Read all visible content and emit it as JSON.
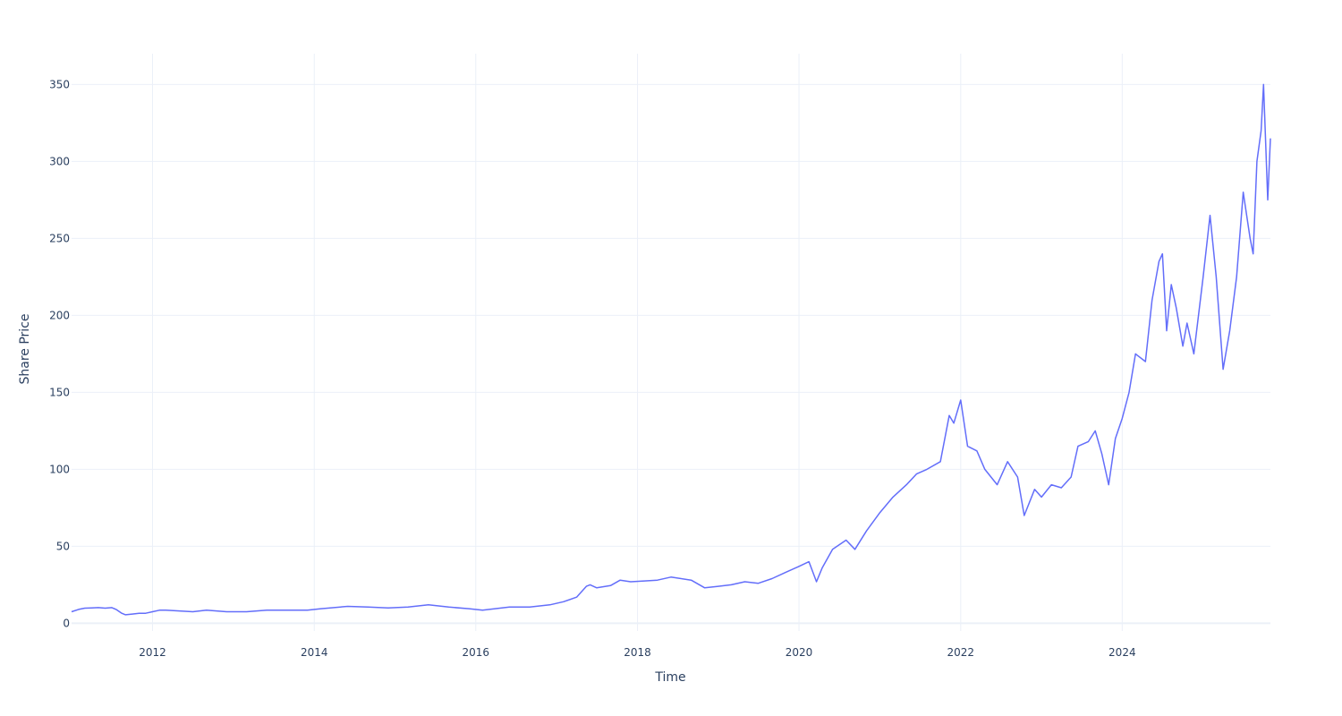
{
  "chart_data": {
    "type": "line",
    "xlabel": "Time",
    "ylabel": "Share Price",
    "xlim": [
      "2010-12-31",
      "2025-11-01"
    ],
    "ylim": [
      -5,
      370
    ],
    "x_ticks": [
      "2012",
      "2014",
      "2016",
      "2018",
      "2020",
      "2022",
      "2024"
    ],
    "y_ticks": [
      0,
      50,
      100,
      150,
      200,
      250,
      300,
      350
    ],
    "grid": true,
    "legend": "none",
    "colors": {
      "line": "#636efa",
      "grid": "#ebf0f8",
      "text": "#2a3f5f"
    },
    "series": [
      {
        "points": [
          [
            "2010-12-31",
            7.5
          ],
          [
            "2011-02-01",
            9.0
          ],
          [
            "2011-03-01",
            9.8
          ],
          [
            "2011-04-01",
            10.0
          ],
          [
            "2011-05-01",
            10.2
          ],
          [
            "2011-06-01",
            9.8
          ],
          [
            "2011-07-01",
            10.2
          ],
          [
            "2011-07-20",
            9.0
          ],
          [
            "2011-08-15",
            6.5
          ],
          [
            "2011-09-01",
            5.5
          ],
          [
            "2011-10-01",
            6.0
          ],
          [
            "2011-11-01",
            6.5
          ],
          [
            "2011-12-01",
            6.5
          ],
          [
            "2012-01-01",
            7.5
          ],
          [
            "2012-02-01",
            8.5
          ],
          [
            "2012-03-01",
            8.5
          ],
          [
            "2012-05-01",
            8.0
          ],
          [
            "2012-07-01",
            7.5
          ],
          [
            "2012-09-01",
            8.5
          ],
          [
            "2012-12-01",
            7.5
          ],
          [
            "2013-03-01",
            7.5
          ],
          [
            "2013-06-01",
            8.5
          ],
          [
            "2013-09-01",
            8.5
          ],
          [
            "2013-12-01",
            8.5
          ],
          [
            "2014-02-01",
            9.5
          ],
          [
            "2014-06-01",
            11.0
          ],
          [
            "2014-09-01",
            10.5
          ],
          [
            "2014-12-01",
            10.0
          ],
          [
            "2015-03-01",
            10.5
          ],
          [
            "2015-06-01",
            12.0
          ],
          [
            "2015-09-01",
            10.5
          ],
          [
            "2015-12-01",
            9.5
          ],
          [
            "2016-02-01",
            8.5
          ],
          [
            "2016-06-01",
            10.5
          ],
          [
            "2016-09-01",
            10.5
          ],
          [
            "2016-12-01",
            12.0
          ],
          [
            "2017-02-01",
            14.0
          ],
          [
            "2017-04-01",
            17.0
          ],
          [
            "2017-05-15",
            24.0
          ],
          [
            "2017-06-01",
            25.0
          ],
          [
            "2017-07-01",
            23.0
          ],
          [
            "2017-09-01",
            24.5
          ],
          [
            "2017-10-15",
            28.0
          ],
          [
            "2017-12-01",
            27.0
          ],
          [
            "2018-02-01",
            27.5
          ],
          [
            "2018-04-01",
            28.0
          ],
          [
            "2018-06-01",
            30.0
          ],
          [
            "2018-09-01",
            28.0
          ],
          [
            "2018-11-01",
            23.0
          ],
          [
            "2019-01-01",
            24.0
          ],
          [
            "2019-03-01",
            25.0
          ],
          [
            "2019-05-01",
            27.0
          ],
          [
            "2019-07-01",
            26.0
          ],
          [
            "2019-09-01",
            29.0
          ],
          [
            "2019-11-01",
            33.0
          ],
          [
            "2020-01-01",
            37.0
          ],
          [
            "2020-02-15",
            40.0
          ],
          [
            "2020-03-20",
            27.0
          ],
          [
            "2020-04-15",
            36.0
          ],
          [
            "2020-06-01",
            48.0
          ],
          [
            "2020-08-01",
            54.0
          ],
          [
            "2020-09-10",
            48.0
          ],
          [
            "2020-11-01",
            60.0
          ],
          [
            "2021-01-01",
            72.0
          ],
          [
            "2021-03-01",
            82.0
          ],
          [
            "2021-05-01",
            90.0
          ],
          [
            "2021-06-15",
            97.0
          ],
          [
            "2021-08-01",
            100.0
          ],
          [
            "2021-10-01",
            105.0
          ],
          [
            "2021-11-10",
            135.0
          ],
          [
            "2021-12-01",
            130.0
          ],
          [
            "2022-01-01",
            145.0
          ],
          [
            "2022-02-01",
            115.0
          ],
          [
            "2022-03-15",
            112.0
          ],
          [
            "2022-04-20",
            100.0
          ],
          [
            "2022-06-15",
            90.0
          ],
          [
            "2022-08-01",
            105.0
          ],
          [
            "2022-09-15",
            95.0
          ],
          [
            "2022-10-15",
            70.0
          ],
          [
            "2022-12-01",
            87.0
          ],
          [
            "2023-01-01",
            82.0
          ],
          [
            "2023-02-15",
            90.0
          ],
          [
            "2023-04-01",
            88.0
          ],
          [
            "2023-05-15",
            95.0
          ],
          [
            "2023-06-15",
            115.0
          ],
          [
            "2023-08-01",
            118.0
          ],
          [
            "2023-09-01",
            125.0
          ],
          [
            "2023-10-01",
            110.0
          ],
          [
            "2023-11-01",
            90.0
          ],
          [
            "2023-12-01",
            120.0
          ],
          [
            "2024-01-01",
            133.0
          ],
          [
            "2024-02-01",
            150.0
          ],
          [
            "2024-03-01",
            175.0
          ],
          [
            "2024-04-15",
            170.0
          ],
          [
            "2024-05-15",
            210.0
          ],
          [
            "2024-06-15",
            235.0
          ],
          [
            "2024-07-01",
            240.0
          ],
          [
            "2024-07-20",
            190.0
          ],
          [
            "2024-08-10",
            220.0
          ],
          [
            "2024-09-01",
            205.0
          ],
          [
            "2024-10-01",
            180.0
          ],
          [
            "2024-10-20",
            195.0
          ],
          [
            "2024-11-20",
            175.0
          ],
          [
            "2025-01-01",
            225.0
          ],
          [
            "2025-02-01",
            265.0
          ],
          [
            "2025-03-01",
            225.0
          ],
          [
            "2025-04-01",
            165.0
          ],
          [
            "2025-05-01",
            190.0
          ],
          [
            "2025-06-01",
            225.0
          ],
          [
            "2025-07-01",
            280.0
          ],
          [
            "2025-08-01",
            250.0
          ],
          [
            "2025-08-15",
            240.0
          ],
          [
            "2025-09-01",
            300.0
          ],
          [
            "2025-09-20",
            320.0
          ],
          [
            "2025-10-01",
            350.0
          ],
          [
            "2025-10-20",
            275.0
          ],
          [
            "2025-11-01",
            315.0
          ]
        ]
      }
    ]
  }
}
